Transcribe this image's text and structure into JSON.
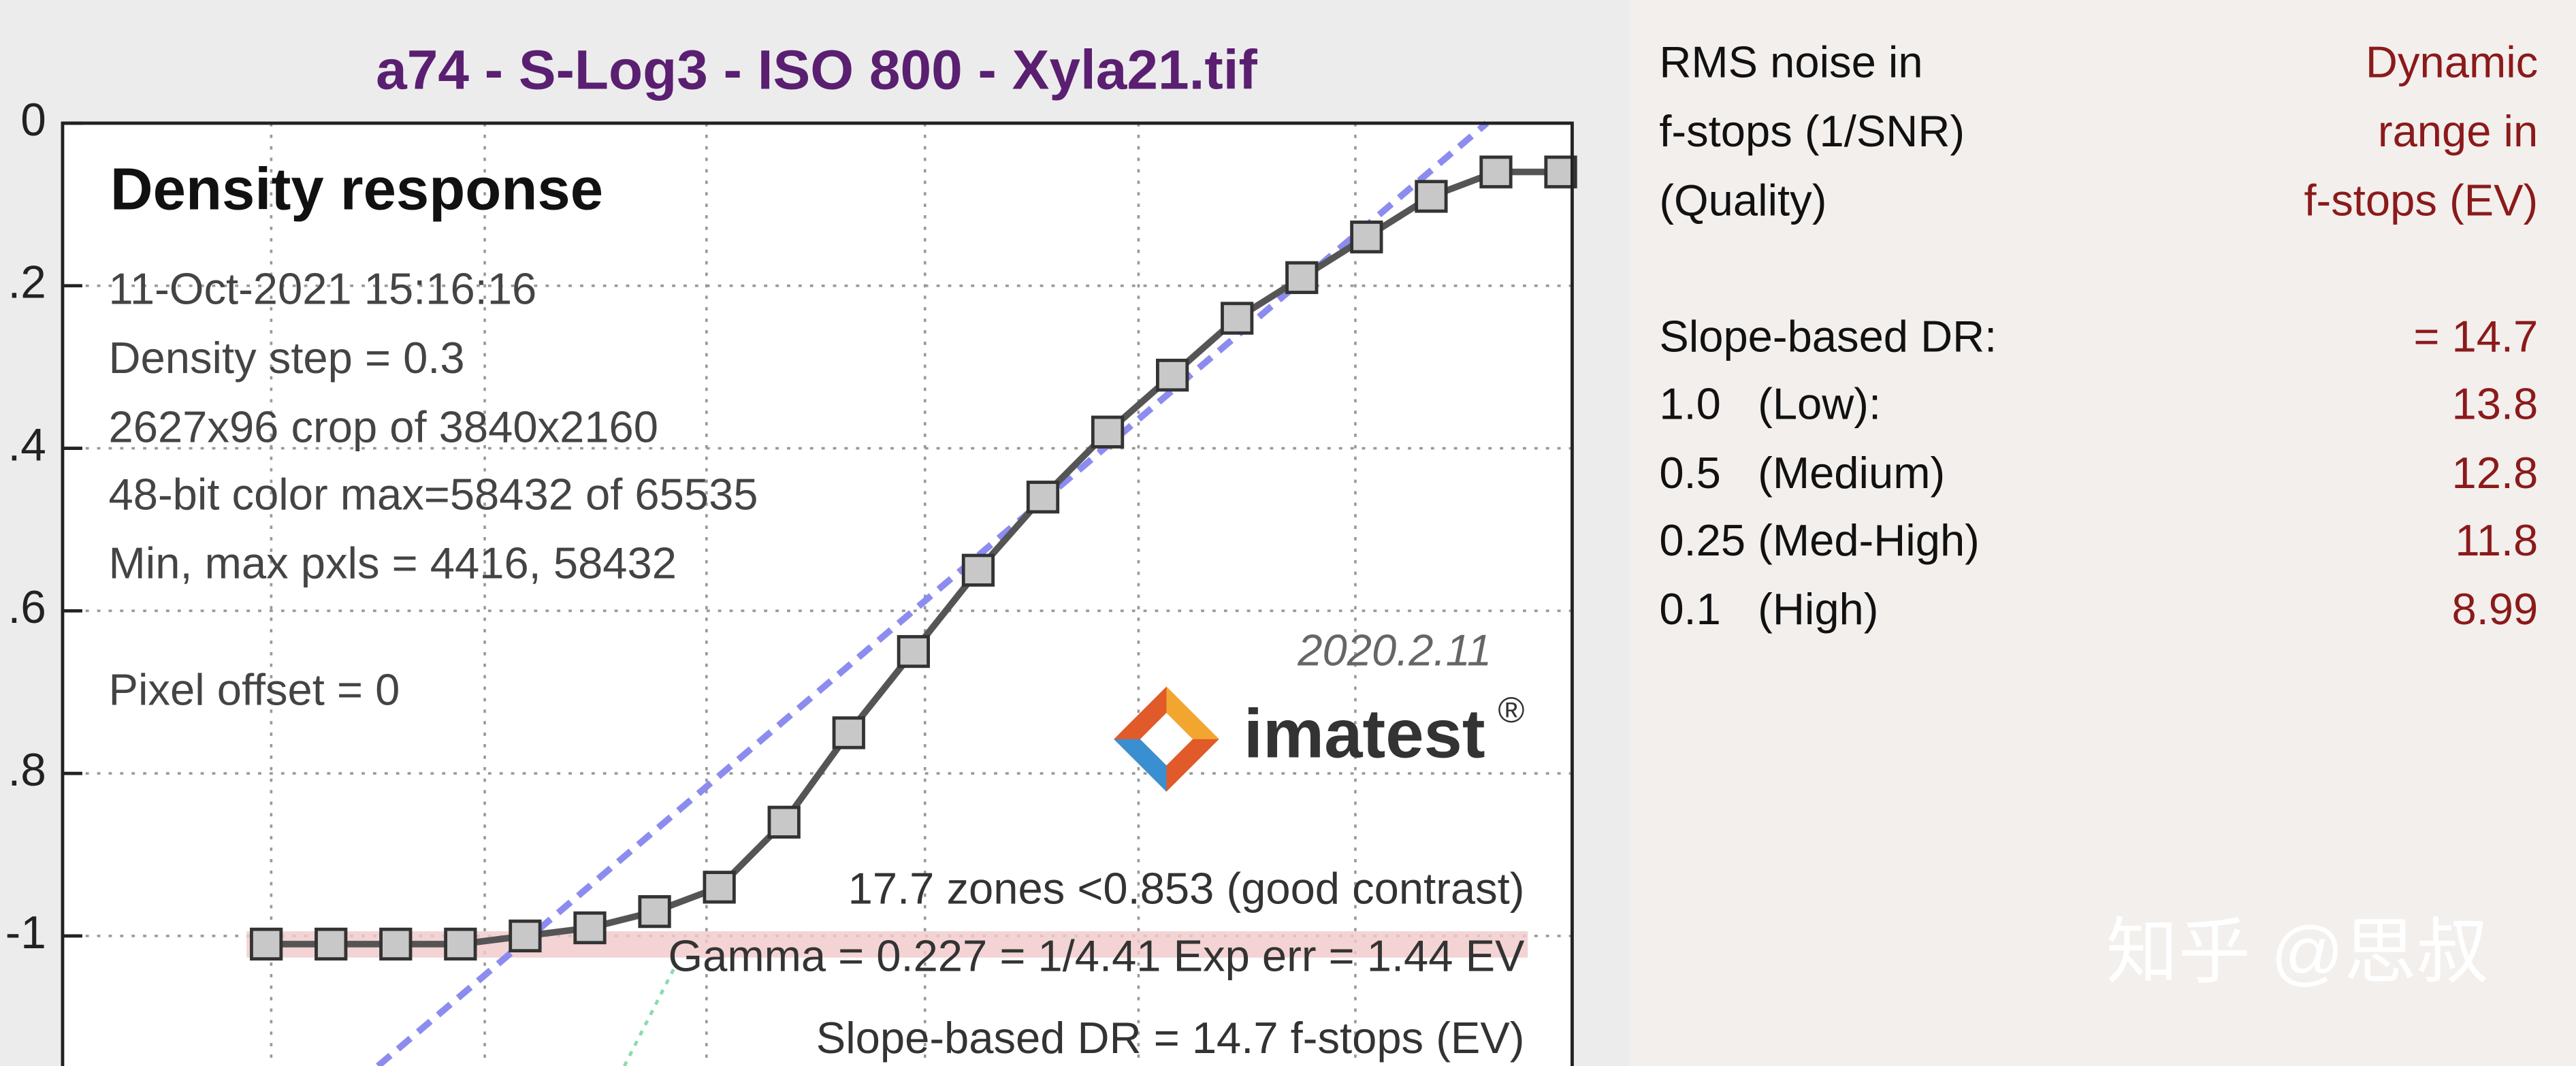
{
  "chart_data": {
    "type": "line",
    "title": "a74 - S-Log3 - ISO 800 - Xyla21.tif",
    "heading": "Density response",
    "info": [
      "11-Oct-2021 15:16:16",
      "Density step = 0.3",
      "2627x96 crop of 3840x2160",
      "48-bit color  max=58432 of 65535",
      "Min, max pxls = 4416, 58432",
      "Pixel offset = 0"
    ],
    "version": "2020.2.11",
    "logo": "imatest",
    "logo_mark": "®",
    "annotations": [
      "17.7 zones <0.853 (good contrast)",
      "Gamma = 0.227 = 1/4.41  Exp err = 1.44 EV",
      "Slope-based DR = 14.7 f-stops (EV)"
    ],
    "categories": [
      null,
      null,
      null,
      null,
      null,
      null,
      null,
      null,
      null,
      null,
      null,
      null,
      null,
      null,
      null,
      null,
      null,
      null,
      null,
      null,
      null
    ],
    "values": [
      -1.01,
      -1.01,
      -1.01,
      -1.01,
      -1.0,
      -0.99,
      -0.97,
      -0.94,
      -0.86,
      -0.75,
      -0.65,
      -0.55,
      -0.46,
      -0.38,
      -0.31,
      -0.24,
      -0.19,
      -0.14,
      -0.09,
      -0.06,
      -0.06
    ],
    "color": "#555555",
    "ylim": [
      -1.16,
      0
    ],
    "yticks": [
      0,
      {
        "value": -0.2,
        "label": ".2"
      },
      {
        "value": -0.4,
        "label": ".4"
      },
      {
        "value": -0.6,
        "label": ".6"
      },
      {
        "value": -0.8,
        "label": ".8"
      },
      -1
    ],
    "grid": true
  },
  "side_panel": {
    "left_header": [
      "RMS noise in",
      "f-stops (1/SNR)",
      "(Quality)"
    ],
    "right_header": [
      "Dynamic",
      "range in",
      "f-stops (EV)"
    ],
    "rows": [
      [
        "Slope-based DR:",
        "= 14.7"
      ],
      [
        "1.0   (Low):",
        "13.8"
      ],
      [
        "0.5   (Medium)",
        "12.8"
      ],
      [
        "0.25 (Med-High)",
        "11.8"
      ],
      [
        "0.1   (High)",
        "8.99"
      ]
    ]
  },
  "watermark": "知乎 @思叔"
}
